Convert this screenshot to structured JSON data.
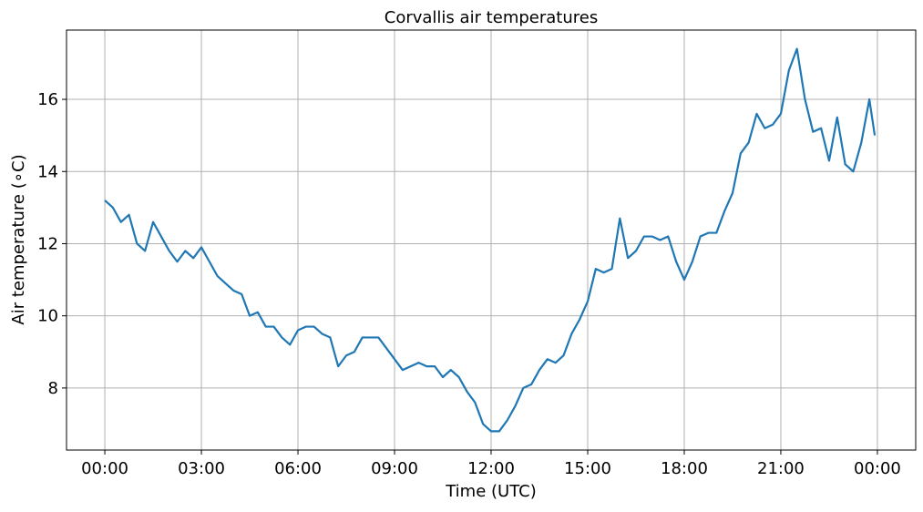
{
  "chart_data": {
    "type": "line",
    "title": "Corvallis air temperatures",
    "x_label": "Time (UTC)",
    "y_label": "Air temperature (∘C)",
    "x": [
      0,
      0.25,
      0.5,
      0.75,
      1,
      1.25,
      1.5,
      1.75,
      2,
      2.25,
      2.5,
      2.75,
      3,
      3.25,
      3.5,
      3.75,
      4,
      4.25,
      4.5,
      4.75,
      5,
      5.25,
      5.5,
      5.75,
      6,
      6.25,
      6.5,
      6.75,
      7,
      7.25,
      7.5,
      7.75,
      8,
      8.25,
      8.5,
      8.75,
      9,
      9.25,
      9.5,
      9.75,
      10,
      10.25,
      10.5,
      10.75,
      11,
      11.25,
      11.5,
      11.75,
      12,
      12.25,
      12.5,
      12.75,
      13,
      13.25,
      13.5,
      13.75,
      14,
      14.25,
      14.5,
      14.75,
      15,
      15.25,
      15.5,
      15.75,
      16,
      16.25,
      16.5,
      16.75,
      17,
      17.25,
      17.5,
      17.75,
      18,
      18.25,
      18.5,
      18.75,
      19,
      19.25,
      19.5,
      19.75,
      20,
      20.25,
      20.5,
      20.75,
      21,
      21.25,
      21.5,
      21.75,
      22,
      22.25,
      22.5,
      22.75,
      23,
      23.25,
      23.5,
      23.75,
      23.917
    ],
    "series": [
      {
        "name": "Air temperature",
        "color": "#1f77b4",
        "values": [
          13.2,
          13.0,
          12.6,
          12.8,
          12.0,
          11.8,
          12.6,
          12.2,
          11.8,
          11.5,
          11.8,
          11.6,
          11.9,
          11.5,
          11.1,
          10.9,
          10.7,
          10.6,
          10.0,
          10.1,
          9.7,
          9.7,
          9.4,
          9.2,
          9.6,
          9.7,
          9.7,
          9.5,
          9.4,
          8.6,
          8.9,
          9.0,
          9.4,
          9.4,
          9.4,
          9.1,
          8.8,
          8.5,
          8.6,
          8.7,
          8.6,
          8.6,
          8.3,
          8.5,
          8.3,
          7.9,
          7.6,
          7.0,
          6.8,
          6.8,
          7.1,
          7.5,
          8.0,
          8.1,
          8.5,
          8.8,
          8.7,
          8.9,
          9.5,
          9.9,
          10.4,
          11.3,
          11.2,
          11.3,
          12.7,
          11.6,
          11.8,
          12.2,
          12.2,
          12.1,
          12.2,
          11.5,
          11.0,
          11.5,
          12.2,
          12.3,
          12.3,
          12.9,
          13.4,
          14.5,
          14.8,
          15.6,
          15.2,
          15.3,
          15.6,
          16.8,
          17.4,
          16.0,
          15.1,
          15.2,
          14.3,
          15.5,
          14.2,
          14.0,
          14.8,
          16.0,
          15.0
        ]
      }
    ],
    "xlim": [
      -1.19,
      25.19
    ],
    "ylim": [
      6.28,
      17.92
    ],
    "xticks": [
      {
        "value": 0,
        "label": "00:00"
      },
      {
        "value": 3,
        "label": "03:00"
      },
      {
        "value": 6,
        "label": "06:00"
      },
      {
        "value": 9,
        "label": "09:00"
      },
      {
        "value": 12,
        "label": "12:00"
      },
      {
        "value": 15,
        "label": "15:00"
      },
      {
        "value": 18,
        "label": "18:00"
      },
      {
        "value": 21,
        "label": "21:00"
      },
      {
        "value": 24,
        "label": "00:00"
      }
    ],
    "yticks": [
      8,
      10,
      12,
      14,
      16
    ],
    "grid": true
  }
}
